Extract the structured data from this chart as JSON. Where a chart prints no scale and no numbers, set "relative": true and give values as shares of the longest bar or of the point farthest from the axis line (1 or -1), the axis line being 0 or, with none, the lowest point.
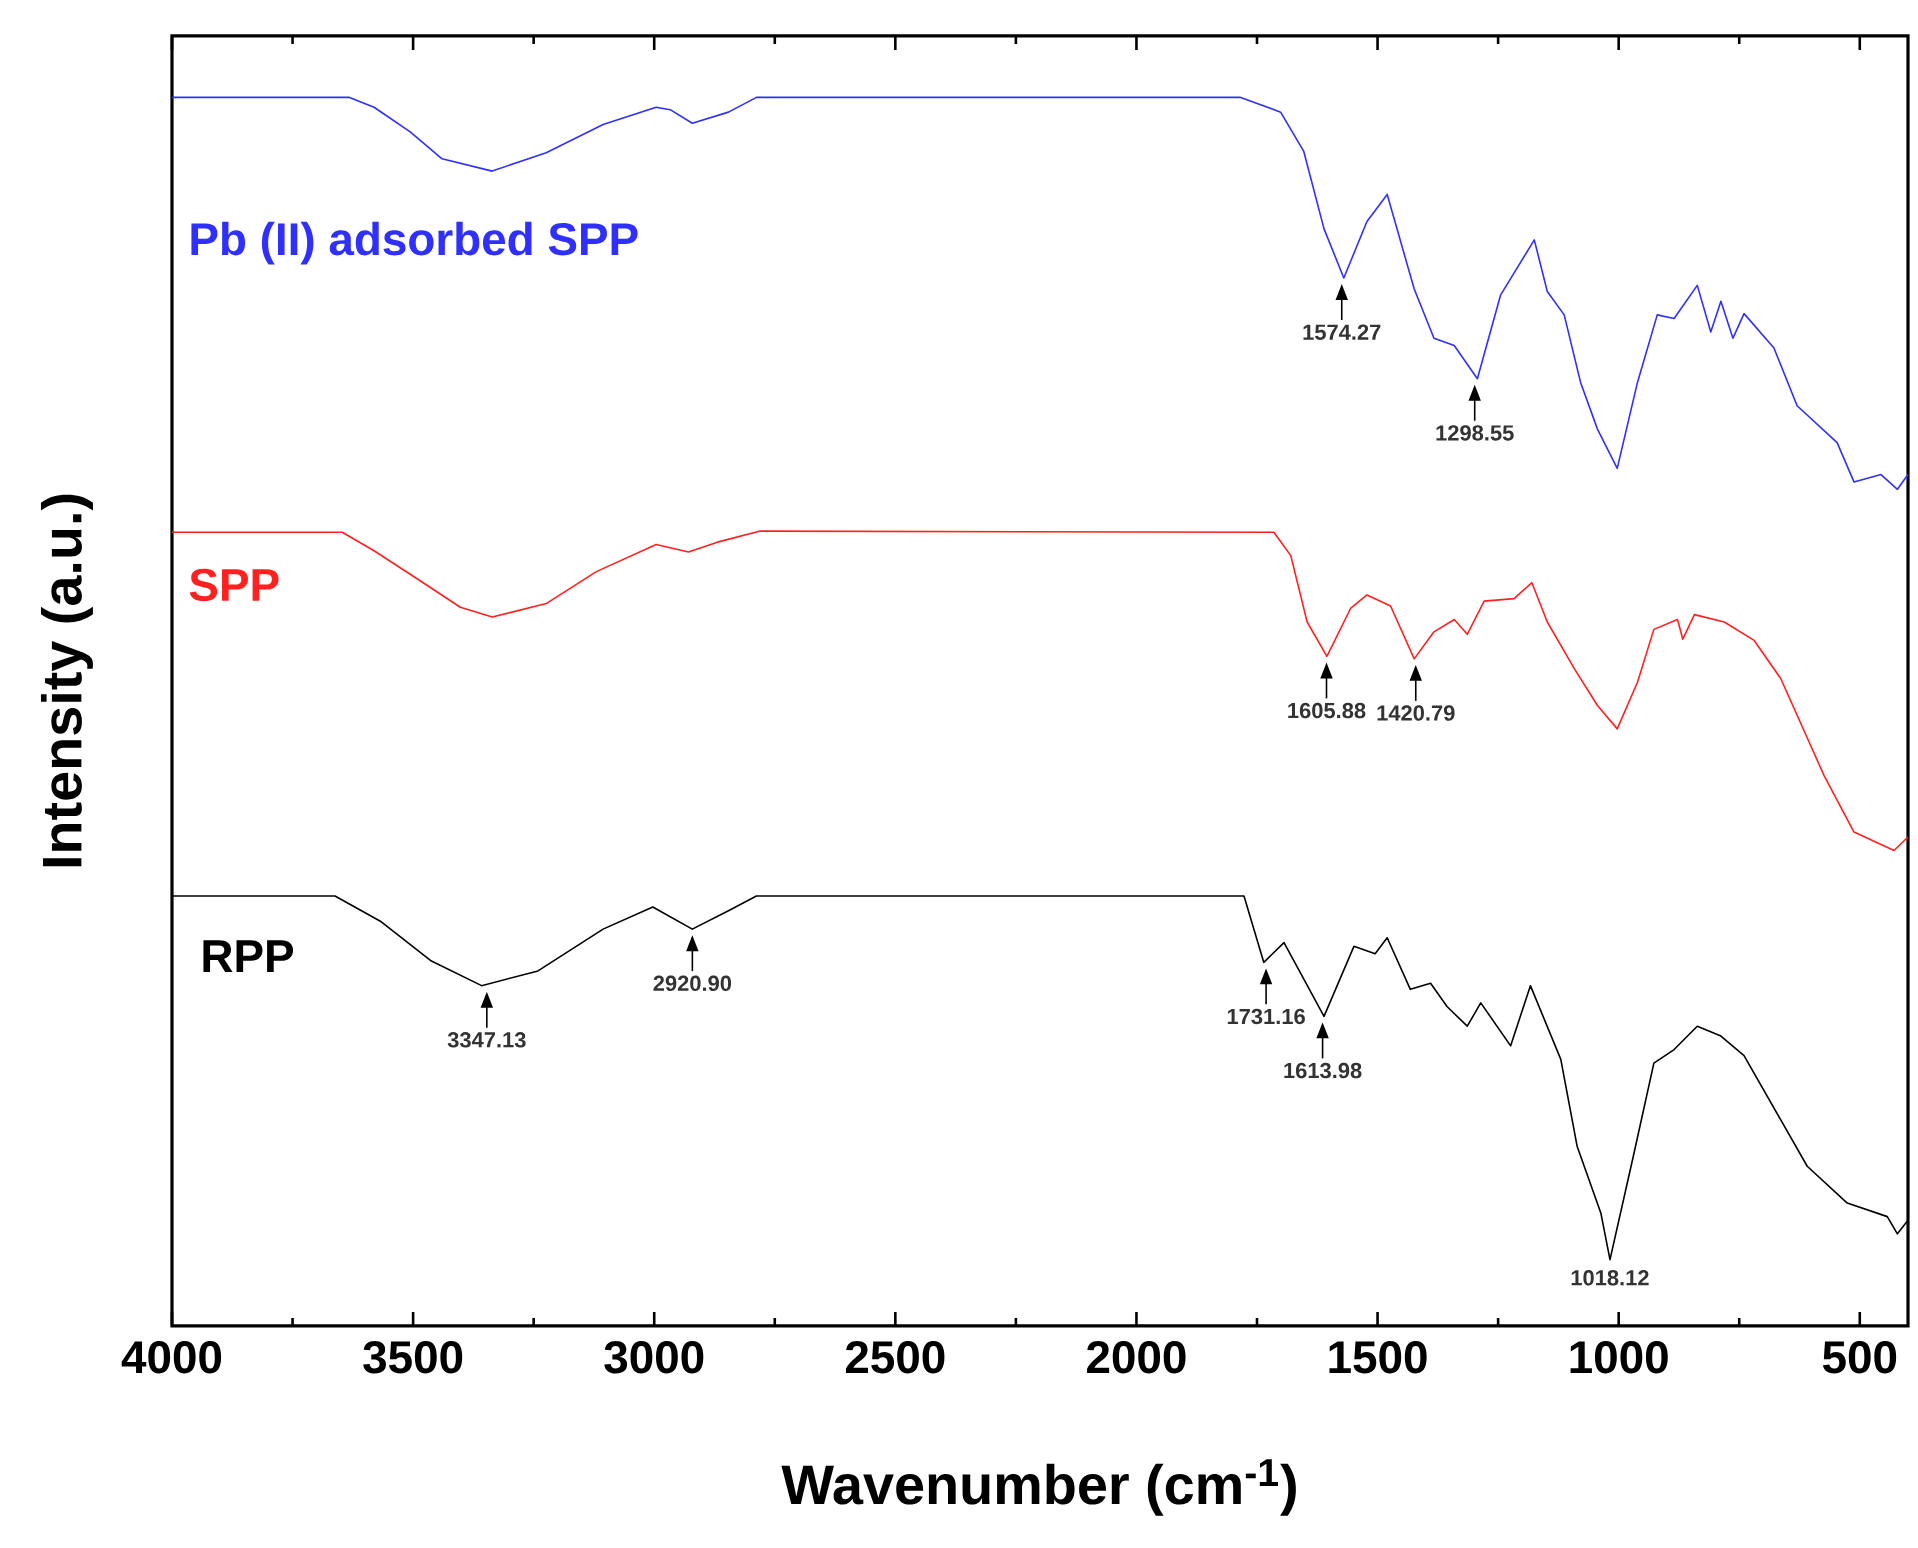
{
  "chart_data": {
    "type": "line",
    "relative": true,
    "xlabel": "Wavenumber (cm$^{-1}$)",
    "ylabel": "Intensity (a.u.)",
    "xlim": [
      4000,
      400
    ],
    "xticks": [
      4000,
      3500,
      3000,
      2500,
      2000,
      1500,
      1000,
      500
    ],
    "series": [
      {
        "name": "Pb (II) adsorbed SPP",
        "color": "#2f2fff",
        "x": [
          4000,
          3632,
          3581,
          3506,
          3440,
          3336,
          3224,
          3106,
          2996,
          2967,
          2921,
          2846,
          2788,
          1784,
          1701,
          1653,
          1611,
          1570,
          1522,
          1480,
          1424,
          1383,
          1341,
          1293,
          1245,
          1175,
          1148,
          1113,
          1079,
          1044,
          1003,
          961,
          920,
          885,
          837,
          809,
          788,
          763,
          740,
          678,
          630,
          547,
          512,
          456,
          422,
          400
        ],
        "values": [
          1.0,
          1.0,
          0.992,
          0.972,
          0.95,
          0.94,
          0.955,
          0.978,
          0.992,
          0.99,
          0.979,
          0.988,
          1.0,
          1.0,
          0.988,
          0.956,
          0.893,
          0.853,
          0.899,
          0.921,
          0.844,
          0.804,
          0.798,
          0.771,
          0.839,
          0.884,
          0.842,
          0.823,
          0.768,
          0.73,
          0.698,
          0.768,
          0.823,
          0.82,
          0.847,
          0.809,
          0.834,
          0.804,
          0.824,
          0.796,
          0.749,
          0.719,
          0.687,
          0.693,
          0.681,
          0.693
        ]
      },
      {
        "name": "SPP",
        "color": "#ff2020",
        "x": [
          4000,
          3647,
          3581,
          3491,
          3402,
          3336,
          3224,
          3120,
          2996,
          2929,
          2869,
          2780,
          1715,
          1680,
          1646,
          1605,
          1556,
          1522,
          1473,
          1424,
          1383,
          1341,
          1314,
          1279,
          1217,
          1180,
          1148,
          1092,
          1044,
          1003,
          961,
          927,
          878,
          867,
          843,
          781,
          719,
          664,
          574,
          512,
          429,
          400
        ],
        "values": [
          0.646,
          0.646,
          0.631,
          0.608,
          0.585,
          0.577,
          0.588,
          0.614,
          0.636,
          0.63,
          0.638,
          0.647,
          0.646,
          0.627,
          0.573,
          0.545,
          0.584,
          0.595,
          0.586,
          0.543,
          0.565,
          0.575,
          0.563,
          0.59,
          0.592,
          0.605,
          0.573,
          0.535,
          0.505,
          0.486,
          0.524,
          0.567,
          0.575,
          0.559,
          0.579,
          0.573,
          0.558,
          0.527,
          0.448,
          0.402,
          0.387,
          0.398
        ]
      },
      {
        "name": "RPP",
        "color": "#000000",
        "x": [
          4000,
          3662,
          3566,
          3462,
          3358,
          3241,
          3106,
          3003,
          2921,
          2846,
          2788,
          1809,
          1777,
          1736,
          1694,
          1611,
          1549,
          1505,
          1480,
          1432,
          1390,
          1356,
          1314,
          1286,
          1224,
          1183,
          1120,
          1086,
          1037,
          1018,
          968,
          927,
          885,
          837,
          788,
          740,
          657,
          609,
          526,
          443,
          422,
          400
        ],
        "values": [
          0.35,
          0.35,
          0.329,
          0.297,
          0.277,
          0.289,
          0.323,
          0.341,
          0.323,
          0.338,
          0.35,
          0.35,
          0.35,
          0.296,
          0.312,
          0.252,
          0.309,
          0.303,
          0.316,
          0.274,
          0.279,
          0.26,
          0.244,
          0.263,
          0.228,
          0.277,
          0.217,
          0.146,
          0.092,
          0.054,
          0.141,
          0.214,
          0.225,
          0.244,
          0.236,
          0.22,
          0.163,
          0.13,
          0.1,
          0.089,
          0.075,
          0.086
        ]
      }
    ],
    "annotations": [
      {
        "text": "1574.27",
        "x": 1574.27,
        "y": 0.853
      },
      {
        "text": "1298.55",
        "x": 1298.55,
        "y": 0.771
      },
      {
        "text": "1605.88",
        "x": 1605.88,
        "y": 0.545
      },
      {
        "text": "1420.79",
        "x": 1420.79,
        "y": 0.543
      },
      {
        "text": "3347.13",
        "x": 3347.13,
        "y": 0.277
      },
      {
        "text": "2920.90",
        "x": 2920.9,
        "y": 0.323
      },
      {
        "text": "1731.16",
        "x": 1731.16,
        "y": 0.296
      },
      {
        "text": "1613.98",
        "x": 1613.98,
        "y": 0.252
      },
      {
        "text": "1018.12",
        "x": 1018.12,
        "y": 0.054
      }
    ]
  }
}
